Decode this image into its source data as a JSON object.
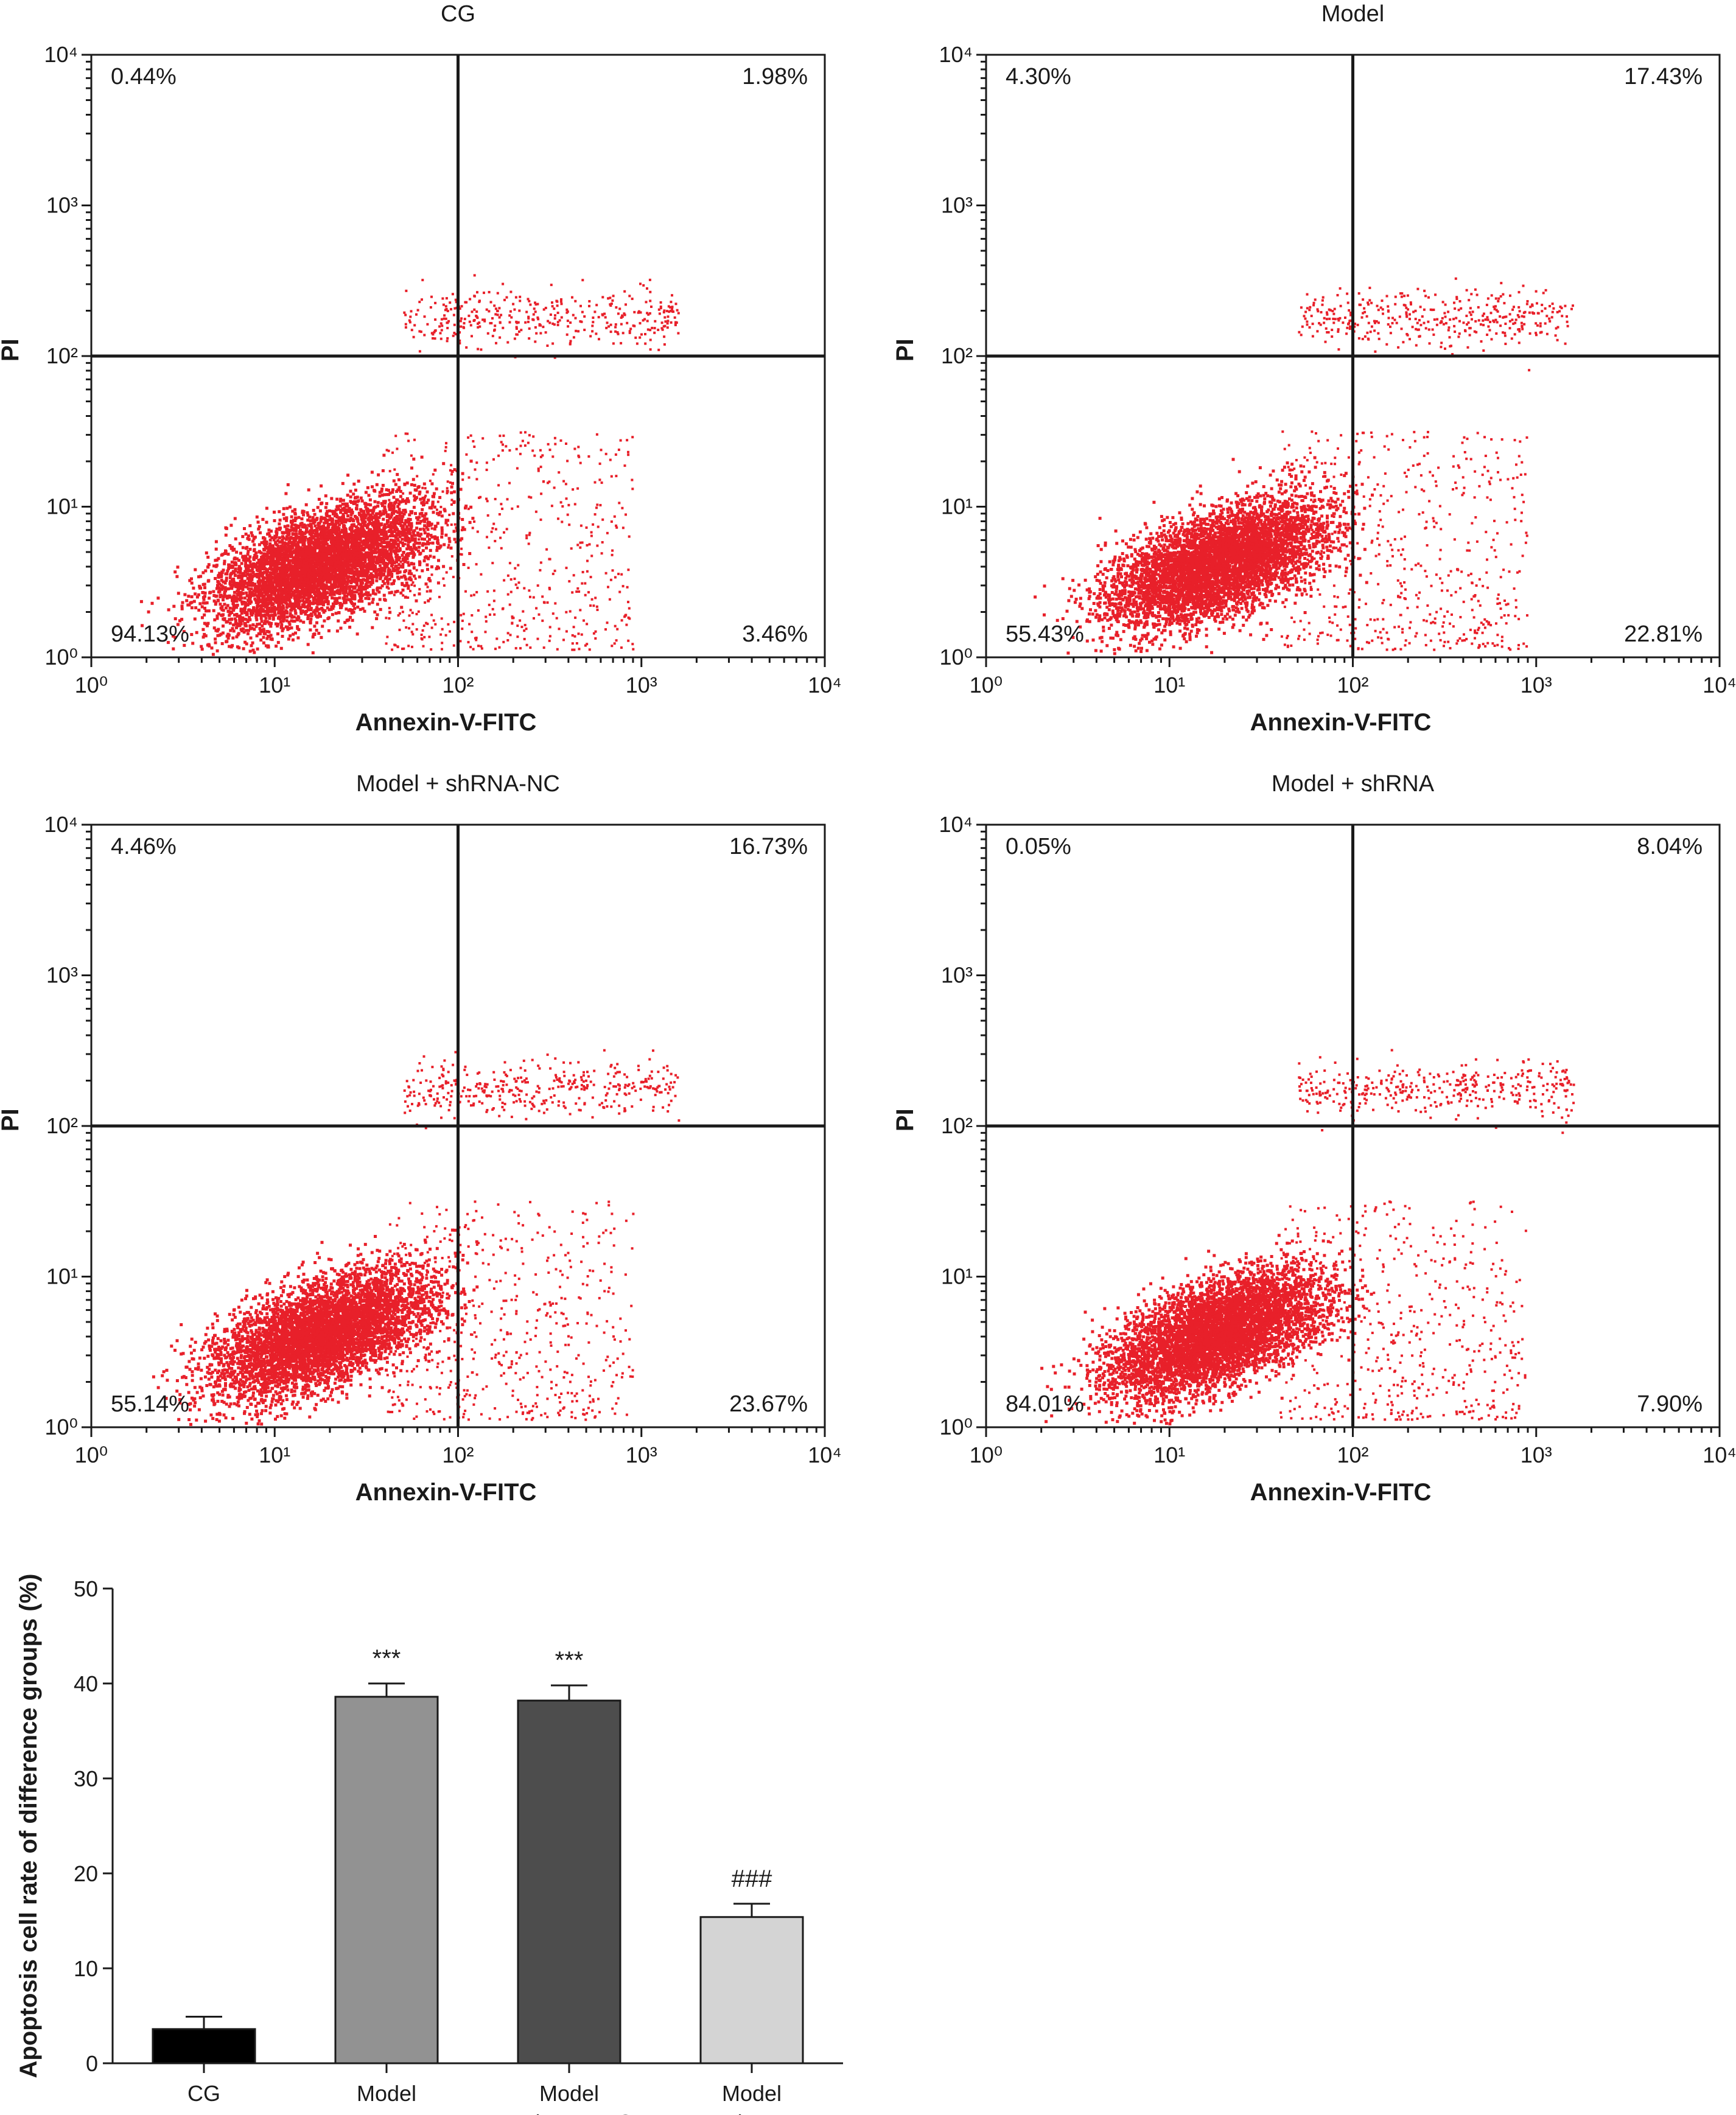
{
  "figure": "flow cytometry apoptosis panels with summary bar chart",
  "chart_data": [
    {
      "type": "scatter",
      "title": "CG",
      "xlabel": "Annexin-V-FITC",
      "ylabel": "PI",
      "x_scale": "log",
      "y_scale": "log",
      "xlim": [
        1,
        10000
      ],
      "ylim": [
        1,
        10000
      ],
      "tick_labels": [
        "10⁰",
        "10¹",
        "10²",
        "10³",
        "10⁴"
      ],
      "gate": {
        "x": 100,
        "y": 100
      },
      "quadrants": {
        "upper_left": "0.44%",
        "upper_right": "1.98%",
        "lower_left": "94.13%",
        "lower_right": "3.46%"
      },
      "events": "dense red population of single-cell events"
    },
    {
      "type": "scatter",
      "title": "Model",
      "xlabel": "Annexin-V-FITC",
      "ylabel": "PI",
      "x_scale": "log",
      "y_scale": "log",
      "xlim": [
        1,
        10000
      ],
      "ylim": [
        1,
        10000
      ],
      "tick_labels": [
        "10⁰",
        "10¹",
        "10²",
        "10³",
        "10⁴"
      ],
      "gate": {
        "x": 100,
        "y": 100
      },
      "quadrants": {
        "upper_left": "4.30%",
        "upper_right": "17.43%",
        "lower_left": "55.43%",
        "lower_right": "22.81%"
      },
      "events": "dense red population of single-cell events"
    },
    {
      "type": "scatter",
      "title": "Model + shRNA-NC",
      "xlabel": "Annexin-V-FITC",
      "ylabel": "PI",
      "x_scale": "log",
      "y_scale": "log",
      "xlim": [
        1,
        10000
      ],
      "ylim": [
        1,
        10000
      ],
      "tick_labels": [
        "10⁰",
        "10¹",
        "10²",
        "10³",
        "10⁴"
      ],
      "gate": {
        "x": 100,
        "y": 100
      },
      "quadrants": {
        "upper_left": "4.46%",
        "upper_right": "16.73%",
        "lower_left": "55.14%",
        "lower_right": "23.67%"
      },
      "events": "dense red population of single-cell events"
    },
    {
      "type": "scatter",
      "title": "Model + shRNA",
      "xlabel": "Annexin-V-FITC",
      "ylabel": "PI",
      "x_scale": "log",
      "y_scale": "log",
      "xlim": [
        1,
        10000
      ],
      "ylim": [
        1,
        10000
      ],
      "tick_labels": [
        "10⁰",
        "10¹",
        "10²",
        "10³",
        "10⁴"
      ],
      "gate": {
        "x": 100,
        "y": 100
      },
      "quadrants": {
        "upper_left": "0.05%",
        "upper_right": "8.04%",
        "lower_left": "84.01%",
        "lower_right": "7.90%"
      },
      "events": "dense red population of single-cell events"
    },
    {
      "type": "bar",
      "title": "",
      "xlabel": "",
      "ylabel": "Apoptosis cell rate of difference groups (%)",
      "ylim": [
        0,
        50
      ],
      "yticks": [
        0,
        10,
        20,
        30,
        40,
        50
      ],
      "categories": [
        "CG",
        "Model",
        "Model + shRNA-NC",
        "Model + shRNA"
      ],
      "values": [
        3.6,
        38.6,
        38.2,
        15.4
      ],
      "errors": [
        1.3,
        1.4,
        1.6,
        1.4
      ],
      "colors": [
        "#000000",
        "#929292",
        "#4d4d4d",
        "#d4d4d4"
      ],
      "annotations": [
        "",
        "***",
        "***",
        "###"
      ]
    }
  ]
}
